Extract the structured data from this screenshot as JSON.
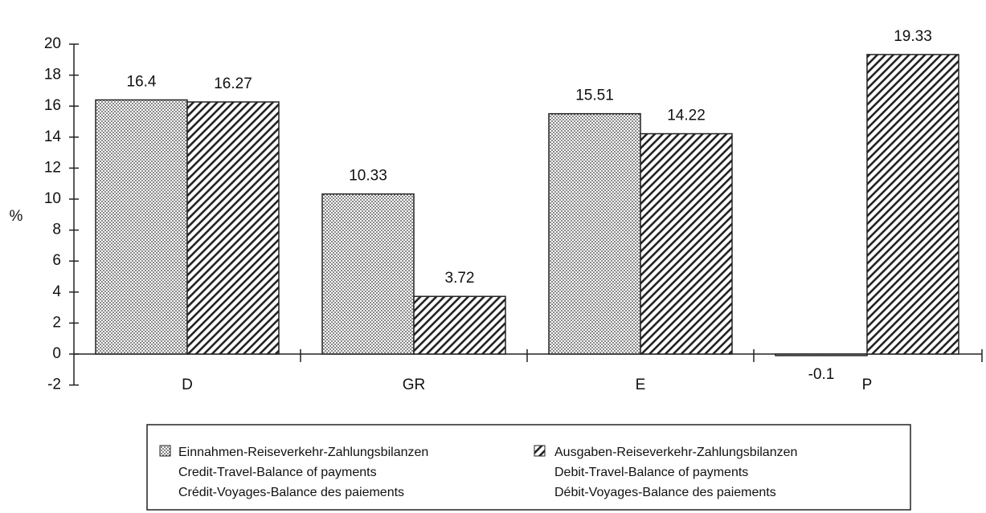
{
  "chart_data": {
    "type": "bar",
    "y_label": "%",
    "categories": [
      "D",
      "GR",
      "E",
      "P"
    ],
    "series": [
      {
        "name": "Einnahmen-Reiseverkehr-Zahlungsbilanzen\nCredit-Travel-Balance of payments\nCrédit-Voyages-Balance des paiements",
        "values": [
          16.4,
          10.33,
          15.51,
          -0.1
        ]
      },
      {
        "name": "Ausgaben-Reiseverkehr-Zahlungsbilanzen\nDebit-Travel-Balance of payments\nDébit-Voyages-Balance des paiements",
        "values": [
          16.27,
          3.72,
          14.22,
          19.33
        ]
      }
    ],
    "ylim": [
      -2,
      20
    ],
    "yticks": [
      -2,
      0,
      2,
      4,
      6,
      8,
      10,
      12,
      14,
      16,
      18,
      20
    ]
  }
}
